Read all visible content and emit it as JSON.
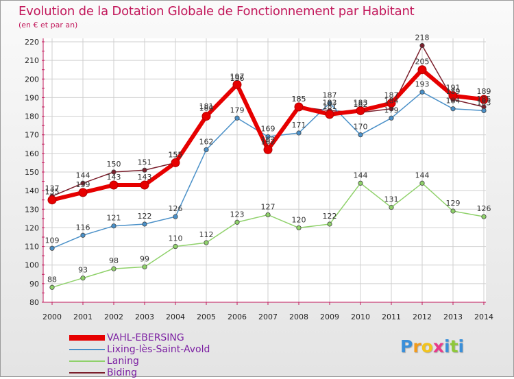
{
  "chart_data": {
    "type": "line",
    "title": "Evolution de la Dotation Globale de Fonctionnement par Habitant",
    "subtitle": "(en € et par an)",
    "xlabel": "",
    "ylabel": "",
    "categories": [
      "2000",
      "2001",
      "2002",
      "2003",
      "2004",
      "2005",
      "2006",
      "2007",
      "2008",
      "2009",
      "2010",
      "2011",
      "2012",
      "2013",
      "2014"
    ],
    "yticks": [
      "80",
      "90",
      "100",
      "110",
      "120",
      "130",
      "140",
      "150",
      "160",
      "170",
      "180",
      "190",
      "200",
      "210",
      "220"
    ],
    "ylim": [
      80,
      220
    ],
    "grid": true,
    "series": [
      {
        "name": "Biding",
        "color": "#7b1f2c",
        "values": [
          137,
          144,
          150,
          151,
          155,
          181,
          196,
          163,
          185,
          183,
          182,
          184,
          218,
          189,
          185
        ],
        "labels": [
          "137",
          "144",
          "150",
          "151",
          "155",
          "181",
          "196",
          "163",
          "185",
          "183",
          "182",
          "184",
          "218",
          "189",
          "185"
        ]
      },
      {
        "name": "Lixing-lès-Saint-Avold",
        "color": "#4a90c8",
        "values": [
          109,
          116,
          121,
          122,
          126,
          162,
          179,
          169,
          171,
          187,
          170,
          179,
          193,
          184,
          183
        ],
        "labels": [
          "109",
          "116",
          "121",
          "122",
          "126",
          "162",
          "179",
          "169",
          "171",
          "187",
          "170",
          "179",
          "193",
          "184",
          "183"
        ]
      },
      {
        "name": "Laning",
        "color": "#8fd16a",
        "values": [
          88,
          93,
          98,
          99,
          110,
          112,
          123,
          127,
          120,
          122,
          144,
          131,
          144,
          129,
          126
        ],
        "labels": [
          "88",
          "93",
          "98",
          "99",
          "110",
          "112",
          "123",
          "127",
          "120",
          "122",
          "144",
          "131",
          "144",
          "129",
          "126"
        ]
      },
      {
        "name": "VAHL-EBERSING",
        "color": "#e60000",
        "values": [
          135,
          139,
          143,
          143,
          155,
          180,
          197,
          162,
          185,
          181,
          183,
          187,
          205,
          191,
          189
        ],
        "labels": [
          "135",
          "139",
          "143",
          "143",
          "155",
          "180",
          "197",
          "162",
          "185",
          "181",
          "183",
          "187",
          "205",
          "191",
          "189"
        ]
      }
    ],
    "legend": [
      "VAHL-EBERSING",
      "Lixing-lès-Saint-Avold",
      "Laning",
      "Biding"
    ]
  },
  "logo": {
    "letters": [
      "P",
      "r",
      "o",
      "x",
      "i",
      "t",
      "i"
    ],
    "colors": [
      "#3a8fd9",
      "#f29b1d",
      "#f2c41d",
      "#e83a8a",
      "#3a8fd9",
      "#8fc83a",
      "#3a8fd9"
    ]
  }
}
